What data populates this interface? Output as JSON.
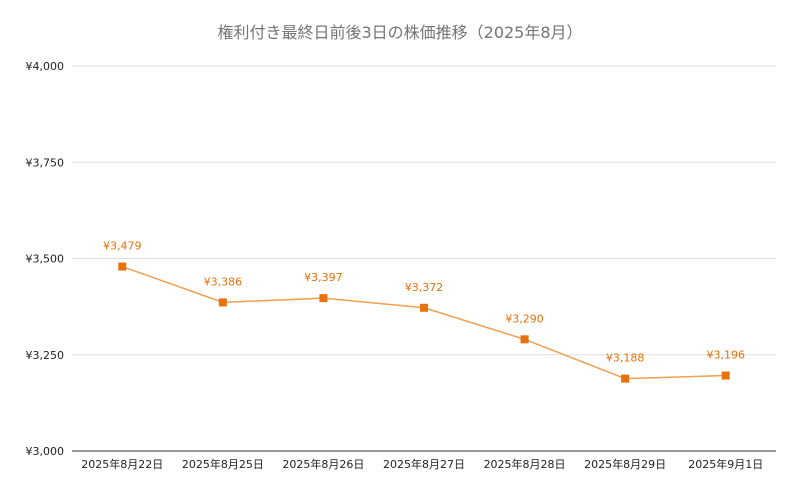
{
  "chart_data": {
    "type": "line",
    "title": "権利付き最終日前後3日の株価推移（2025年8月）",
    "xlabel": "",
    "ylabel": "",
    "categories": [
      "2025年8月22日",
      "2025年8月25日",
      "2025年8月26日",
      "2025年8月27日",
      "2025年8月28日",
      "2025年8月29日",
      "2025年9月1日"
    ],
    "series": [
      {
        "values": [
          3479,
          3386,
          3397,
          3372,
          3290,
          3188,
          3196
        ]
      }
    ],
    "data_labels": [
      "¥3,479",
      "¥3,386",
      "¥3,397",
      "¥3,372",
      "¥3,290",
      "¥3,188",
      "¥3,196"
    ],
    "ylim": [
      3000,
      4000
    ],
    "yticks": [
      3000,
      3250,
      3500,
      3750,
      4000
    ],
    "ytick_labels": [
      "¥3,000",
      "¥3,250",
      "¥3,500",
      "¥3,750",
      "¥4,000"
    ],
    "grid": true,
    "legend": "none",
    "line_color": "#f0a050",
    "marker_color": "#e8710a",
    "marker": "square"
  }
}
